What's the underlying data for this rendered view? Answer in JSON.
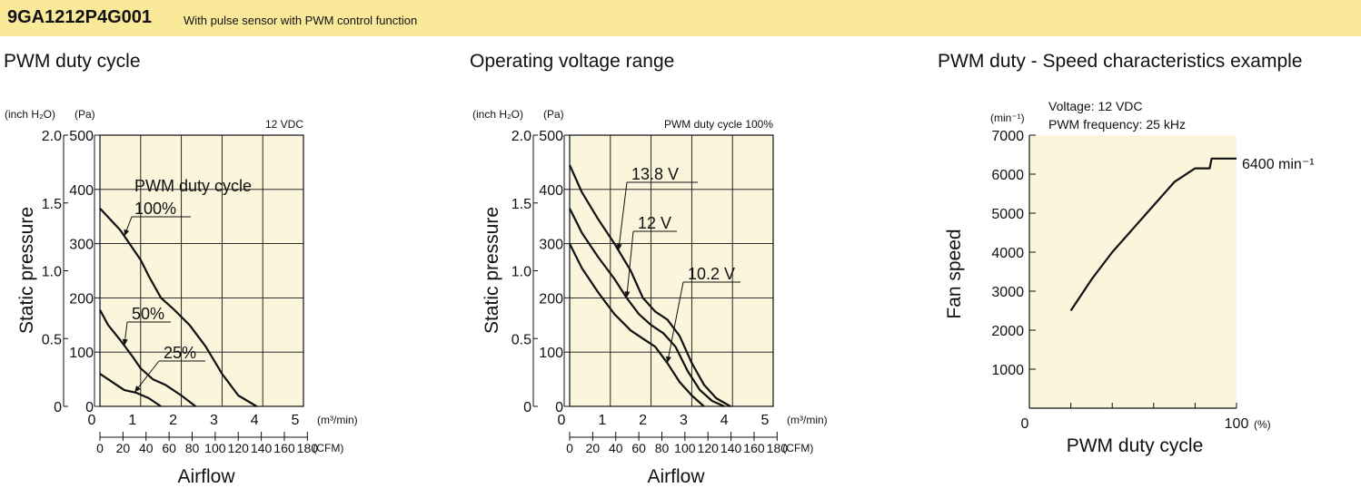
{
  "header": {
    "model": "9GA1212P4G001",
    "description": "With pulse sensor with PWM control function"
  },
  "chart_data": [
    {
      "type": "line",
      "title": "PWM duty cycle",
      "condition": "12 VDC",
      "xlabel": "Airflow",
      "ylabel": "Static pressure",
      "x_unit": "(m³/min)",
      "x2_unit": "(CFM)",
      "y_unit": "(Pa)",
      "y2_unit": "(inch H₂O)",
      "xlim": [
        0,
        5
      ],
      "ylim": [
        0,
        500
      ],
      "x_ticks": [
        "0",
        "1",
        "2",
        "3",
        "4",
        "5"
      ],
      "x2_ticks": [
        "0",
        "20",
        "40",
        "60",
        "80",
        "100",
        "120",
        "140",
        "160",
        "180"
      ],
      "y_ticks": [
        "0",
        "100",
        "200",
        "300",
        "400",
        "500"
      ],
      "y2_ticks": [
        "0",
        "0.5",
        "1.0",
        "1.5",
        "2.0"
      ],
      "grid": true,
      "annotation": "PWM duty cycle",
      "series": [
        {
          "name": "100%",
          "x": [
            0,
            0.5,
            1.0,
            1.2,
            1.5,
            1.8,
            2.2,
            2.6,
            3.0,
            3.4,
            3.85
          ],
          "y": [
            365,
            325,
            270,
            240,
            200,
            180,
            150,
            110,
            60,
            20,
            0
          ]
        },
        {
          "name": "50%",
          "x": [
            0,
            0.2,
            0.5,
            0.8,
            1.0,
            1.3,
            1.6,
            2.0,
            2.35
          ],
          "y": [
            178,
            150,
            122,
            92,
            70,
            50,
            40,
            20,
            0
          ]
        },
        {
          "name": "25%",
          "x": [
            0,
            0.3,
            0.6,
            0.9,
            1.2,
            1.5
          ],
          "y": [
            60,
            45,
            30,
            25,
            15,
            0
          ]
        }
      ]
    },
    {
      "type": "line",
      "title": "Operating voltage range",
      "condition": "PWM duty cycle 100%",
      "xlabel": "Airflow",
      "ylabel": "Static pressure",
      "x_unit": "(m³/min)",
      "x2_unit": "(CFM)",
      "y_unit": "(Pa)",
      "y2_unit": "(inch H₂O)",
      "xlim": [
        0,
        5
      ],
      "ylim": [
        0,
        500
      ],
      "x_ticks": [
        "0",
        "1",
        "2",
        "3",
        "4",
        "5"
      ],
      "x2_ticks": [
        "0",
        "20",
        "40",
        "60",
        "80",
        "100",
        "120",
        "140",
        "160",
        "180"
      ],
      "y_ticks": [
        "0",
        "100",
        "200",
        "300",
        "400",
        "500"
      ],
      "y2_ticks": [
        "0",
        "0.5",
        "1.0",
        "1.5",
        "2.0"
      ],
      "grid": true,
      "series": [
        {
          "name": "13.8 V",
          "x": [
            0,
            0.3,
            0.7,
            1.1,
            1.5,
            1.8,
            2.1,
            2.4,
            2.7,
            3.0,
            3.3,
            3.6,
            3.95
          ],
          "y": [
            445,
            395,
            345,
            300,
            250,
            200,
            175,
            160,
            130,
            80,
            40,
            15,
            0
          ]
        },
        {
          "name": "12 V",
          "x": [
            0,
            0.3,
            0.7,
            1.1,
            1.4,
            1.7,
            2.0,
            2.3,
            2.6,
            2.9,
            3.2,
            3.5,
            3.8
          ],
          "y": [
            365,
            320,
            275,
            235,
            200,
            170,
            150,
            135,
            110,
            65,
            30,
            10,
            0
          ]
        },
        {
          "name": "10.2 V",
          "x": [
            0,
            0.3,
            0.7,
            1.1,
            1.5,
            1.8,
            2.1,
            2.4,
            2.7,
            3.0,
            3.3
          ],
          "y": [
            300,
            255,
            210,
            170,
            140,
            125,
            110,
            80,
            45,
            20,
            0
          ]
        }
      ]
    },
    {
      "type": "line",
      "title": "PWM duty - Speed characteristics example",
      "conditions": [
        "Voltage: 12 VDC",
        "PWM frequency: 25 kHz"
      ],
      "xlabel": "PWM duty cycle",
      "ylabel": "Fan speed",
      "x_unit": "(%)",
      "y_unit": "(min⁻¹)",
      "xlim": [
        0,
        100
      ],
      "ylim": [
        0,
        7000
      ],
      "x_ticks": [
        "0",
        "100"
      ],
      "y_ticks": [
        "1000",
        "2000",
        "3000",
        "4000",
        "5000",
        "6000",
        "7000"
      ],
      "grid": false,
      "series": [
        {
          "name": "",
          "x": [
            20,
            30,
            40,
            50,
            60,
            70,
            80,
            87,
            88,
            100
          ],
          "y": [
            2500,
            3300,
            4000,
            4600,
            5200,
            5800,
            6150,
            6150,
            6400,
            6400
          ]
        }
      ],
      "annotation": "6400 min⁻¹"
    }
  ]
}
